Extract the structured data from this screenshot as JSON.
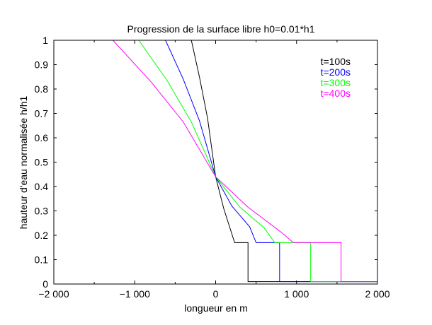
{
  "chart_data": {
    "type": "line",
    "title": "Progression de la surface libre h0=0.01*h1",
    "xlabel": "longueur en m",
    "ylabel": "hauteur d'eau normalisée h/h1",
    "xlim": [
      -2000,
      2000
    ],
    "ylim": [
      0,
      1
    ],
    "xticks": [
      -2000,
      -1000,
      0,
      1000,
      2000
    ],
    "xtick_labels": [
      "−2 000",
      "−1 000",
      "0",
      "1 000",
      "2 000"
    ],
    "yticks": [
      0,
      0.1,
      0.2,
      0.3,
      0.4,
      0.5,
      0.6,
      0.7,
      0.8,
      0.9,
      1
    ],
    "ytick_labels": [
      "0",
      "0.1",
      "0.2",
      "0.3",
      "0.4",
      "0.5",
      "0.6",
      "0.7",
      "0.8",
      "0.9",
      "1"
    ],
    "grid": false,
    "legend_position": "top-right",
    "series": [
      {
        "name": "t=100s",
        "color": "#000000",
        "points": [
          [
            -300,
            1.0
          ],
          [
            -200,
            0.85
          ],
          [
            -100,
            0.68
          ],
          [
            0,
            0.44
          ],
          [
            100,
            0.31
          ],
          [
            235,
            0.17
          ],
          [
            400,
            0.17
          ],
          [
            400,
            0.01
          ],
          [
            2000,
            0.01
          ]
        ]
      },
      {
        "name": "t=200s",
        "color": "#0000ff",
        "points": [
          [
            -620,
            1.0
          ],
          [
            -400,
            0.84
          ],
          [
            -200,
            0.67
          ],
          [
            0,
            0.44
          ],
          [
            200,
            0.32
          ],
          [
            420,
            0.235
          ],
          [
            500,
            0.17
          ],
          [
            790,
            0.17
          ],
          [
            790,
            0.01
          ],
          [
            2000,
            0.01
          ]
        ]
      },
      {
        "name": "t=300s",
        "color": "#00ff00",
        "points": [
          [
            -950,
            1.0
          ],
          [
            -600,
            0.835
          ],
          [
            -300,
            0.665
          ],
          [
            0,
            0.44
          ],
          [
            300,
            0.315
          ],
          [
            600,
            0.23
          ],
          [
            730,
            0.17
          ],
          [
            1175,
            0.17
          ],
          [
            1175,
            0.01
          ],
          [
            2000,
            0.01
          ]
        ]
      },
      {
        "name": "t=400s",
        "color": "#ff00ff",
        "points": [
          [
            -1270,
            1.0
          ],
          [
            -800,
            0.83
          ],
          [
            -400,
            0.665
          ],
          [
            0,
            0.44
          ],
          [
            400,
            0.315
          ],
          [
            800,
            0.215
          ],
          [
            960,
            0.17
          ],
          [
            1550,
            0.17
          ],
          [
            1550,
            0.01
          ],
          [
            2000,
            0.01
          ]
        ]
      }
    ]
  }
}
